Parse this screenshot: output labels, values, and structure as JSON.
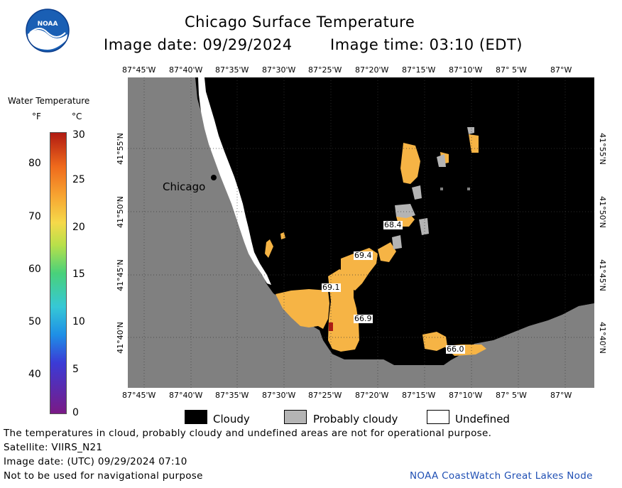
{
  "header": {
    "logo_text": "NOAA",
    "title": "Chicago Surface Temperature",
    "image_date_label": "Image date: 09/29/2024",
    "image_time_label": "Image time: 03:10 (EDT)"
  },
  "colorbar": {
    "title": "Water Temperature",
    "unit_f": "°F",
    "unit_c": "°C",
    "f_ticks": [
      "80",
      "70",
      "60",
      "50",
      "40"
    ],
    "c_ticks": [
      "30",
      "25",
      "20",
      "15",
      "10",
      "5",
      "0"
    ],
    "colors": [
      "#7a1a86",
      "#3b3bd6",
      "#1e8fe6",
      "#36c8d6",
      "#49d17a",
      "#b8e04a",
      "#f6d94a",
      "#f7a230",
      "#ef6a1c",
      "#b01a12"
    ]
  },
  "map": {
    "lon_ticks": [
      "87°45'W",
      "87°40'W",
      "87°35'W",
      "87°30'W",
      "87°25'W",
      "87°20'W",
      "87°15'W",
      "87°10'W",
      "87° 5'W",
      "87°W"
    ],
    "lat_ticks": [
      "41°55'N",
      "41°50'N",
      "41°45'N",
      "41°40'N"
    ],
    "city_label": "Chicago",
    "temperature_labels": [
      "68.4",
      "69.4",
      "69.1",
      "66.9",
      "66.0"
    ],
    "land_color": "#808080",
    "cloud_color": "#000000",
    "probably_cloudy_color": "#b4b4b4",
    "water_color": "#f6b445"
  },
  "key": {
    "cloudy": "Cloudy",
    "probably_cloudy": "Probably cloudy",
    "undefined": "Undefined"
  },
  "footer": {
    "disclaimer": "The temperatures in cloud, probably cloudy and undefined areas are not for operational purpose.",
    "satellite": "Satellite: VIIRS_N21",
    "utc_date": "Image date: (UTC) 09/29/2024  07:10",
    "nav_warning": "Not to be used for navigational purpose",
    "credit": "NOAA CoastWatch Great Lakes Node"
  }
}
